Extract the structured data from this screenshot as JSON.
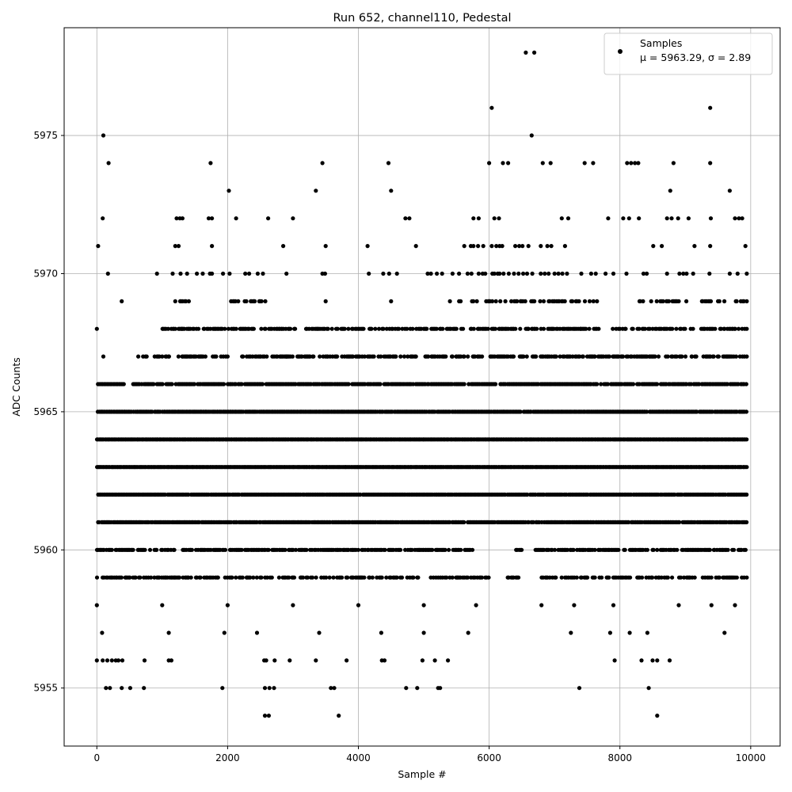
{
  "chart_data": {
    "type": "scatter",
    "title": "Run 652, channel110, Pedestal",
    "xlabel": "Sample #",
    "ylabel": "ADC Counts",
    "xlim": [
      -500,
      10450
    ],
    "ylim": [
      5952.9,
      5978.9
    ],
    "xticks": [
      0,
      2000,
      4000,
      6000,
      8000,
      10000
    ],
    "yticks": [
      5955,
      5960,
      5965,
      5970,
      5975
    ],
    "grid": true,
    "legend": {
      "placement": "top-right",
      "label": "Samples",
      "stats": "μ = 5963.29, σ = 2.89"
    },
    "series": [
      {
        "name": "Samples",
        "marker": "circle",
        "color": "#000000",
        "n_samples": 10000,
        "mean": 5963.29,
        "sigma": 2.89,
        "levels": [
          {
            "y": 5954,
            "x": [
              2570,
              2630,
              3700,
              8570
            ]
          },
          {
            "y": 5955,
            "x": [
              140,
              200,
              380,
              510,
              720,
              1920,
              2570,
              2640,
              2710,
              3580,
              3630,
              4730,
              4900,
              5220,
              5250,
              7380,
              8440
            ]
          },
          {
            "y": 5956,
            "x": [
              0,
              90,
              160,
              230,
              290,
              330,
              390,
              730,
              1100,
              1140,
              2560,
              2590,
              2720,
              2950,
              3350,
              3820,
              4360,
              4400,
              4980,
              5170,
              5370,
              7920,
              8330,
              8500,
              8570,
              8760
            ]
          },
          {
            "y": 5976,
            "x": [
              6040,
              9380
            ]
          },
          {
            "y": 5978,
            "x": [
              6560,
              6690
            ]
          },
          {
            "y": 5975,
            "x": [
              100,
              6650
            ]
          },
          {
            "y": 5974,
            "x": [
              180,
              1740,
              3450,
              4460,
              6000,
              6210,
              6290,
              6820,
              6940,
              7460,
              7590,
              8110,
              8170,
              8230,
              8280,
              8820,
              9380
            ]
          },
          {
            "y": 5973,
            "x": [
              2020,
              3350,
              4500,
              8770,
              9680
            ]
          },
          {
            "y": 5972,
            "x": [
              90,
              1220,
              1270,
              1310,
              1710,
              1760,
              2130,
              2620,
              3000,
              4720,
              4780,
              5760,
              5840,
              6080,
              6150,
              7110,
              7210,
              7820,
              8050,
              8140,
              8290,
              8720,
              8790,
              8890,
              9050,
              9390,
              9760,
              9820,
              9870
            ]
          },
          {
            "y": 5971,
            "x": [
              20,
              1200,
              1250,
              1760,
              2850,
              3500,
              4140,
              4880,
              5620,
              5720,
              5760,
              5830,
              5910,
              6040,
              6110,
              6160,
              6200,
              6400,
              6460,
              6510,
              6600,
              6790,
              6890,
              6950,
              7160,
              8510,
              8640,
              9140,
              9380,
              9920
            ]
          },
          {
            "y": 5970,
            "x": [
              170,
              920,
              1160,
              1280,
              1380,
              1530,
              1620,
              1730,
              1760,
              1930,
              2030,
              2270,
              2330,
              2460,
              2540,
              2900,
              3450,
              3490,
              4160,
              4380,
              4470,
              4590,
              5060,
              5110,
              5200,
              5280,
              5440,
              5540,
              5670,
              5730,
              5840,
              5900,
              5940,
              6050,
              6080,
              6130,
              6160,
              6220,
              6300,
              6380,
              6450,
              6520,
              6580,
              6660,
              6790,
              6850,
              6910,
              7000,
              7060,
              7120,
              7190,
              7410,
              7560,
              7630,
              7780,
              7900,
              8100,
              8360,
              8410,
              8720,
              8910,
              8970,
              9020,
              9120,
              9370,
              9680,
              9800,
              9940
            ]
          },
          {
            "y": 5958,
            "x": [
              0,
              1000,
              2000,
              3000,
              4000,
              5000,
              5800,
              6800,
              7300,
              7900,
              8900,
              9400,
              9760
            ]
          },
          {
            "y": 5957,
            "x": [
              80,
              1100,
              1950,
              2450,
              3400,
              4350,
              5000,
              5680,
              7250,
              7850,
              8150,
              8420,
              9600
            ]
          },
          {
            "y": 5969,
            "x": [
              380,
              1200,
              2400,
              3500,
              4500,
              5400,
              6000,
              7000,
              7650,
              8300,
              8900,
              9500,
              9940
            ]
          },
          {
            "y": 5968,
            "x": [
              0,
              1300,
              2400,
              3200,
              4000,
              5000,
              5600,
              6600,
              7400,
              8000,
              8800,
              9600,
              9940
            ]
          },
          {
            "y": 5967,
            "x": [
              100,
              1100,
              2000,
              2900,
              3900,
              4800,
              5500,
              6500,
              7500,
              8300,
              9100,
              9940
            ]
          }
        ],
        "dense_bands": [
          {
            "y": 5959,
            "x_range": [
              0,
              9940
            ],
            "gaps": [
              [
                4950,
                5100
              ],
              [
                6000,
                6200
              ],
              [
                6450,
                6800
              ]
            ],
            "density": 0.55
          },
          {
            "y": 5960,
            "x_range": [
              0,
              9940
            ],
            "gaps": [
              [
                1200,
                1300
              ],
              [
                5750,
                6400
              ],
              [
                6500,
                6700
              ]
            ],
            "density": 0.7
          },
          {
            "y": 5961,
            "x_range": [
              0,
              9940
            ],
            "gaps": [],
            "density": 0.9
          },
          {
            "y": 5962,
            "x_range": [
              0,
              9940
            ],
            "gaps": [],
            "density": 0.95
          },
          {
            "y": 5963,
            "x_range": [
              0,
              9940
            ],
            "gaps": [],
            "density": 1.0
          },
          {
            "y": 5964,
            "x_range": [
              0,
              9940
            ],
            "gaps": [],
            "density": 1.0
          },
          {
            "y": 5965,
            "x_range": [
              0,
              9940
            ],
            "gaps": [],
            "density": 0.95
          },
          {
            "y": 5966,
            "x_range": [
              0,
              9940
            ],
            "gaps": [
              [
                450,
                550
              ]
            ],
            "density": 0.85
          },
          {
            "y": 5967,
            "x_range": [
              600,
              9940
            ],
            "gaps": [
              [
                2000,
                2200
              ],
              [
                5900,
                6000
              ]
            ],
            "density": 0.55
          },
          {
            "y": 5968,
            "x_range": [
              1000,
              9940
            ],
            "gaps": [
              [
                2400,
                2500
              ],
              [
                3100,
                3200
              ],
              [
                5600,
                5700
              ],
              [
                7700,
                7850
              ]
            ],
            "density": 0.6
          },
          {
            "y": 5969,
            "x_range": [
              1150,
              9940
            ],
            "gaps": [
              [
                1500,
                2000
              ],
              [
                2600,
                5500
              ],
              [
                7700,
                8300
              ]
            ],
            "density": 0.35
          }
        ]
      }
    ]
  }
}
